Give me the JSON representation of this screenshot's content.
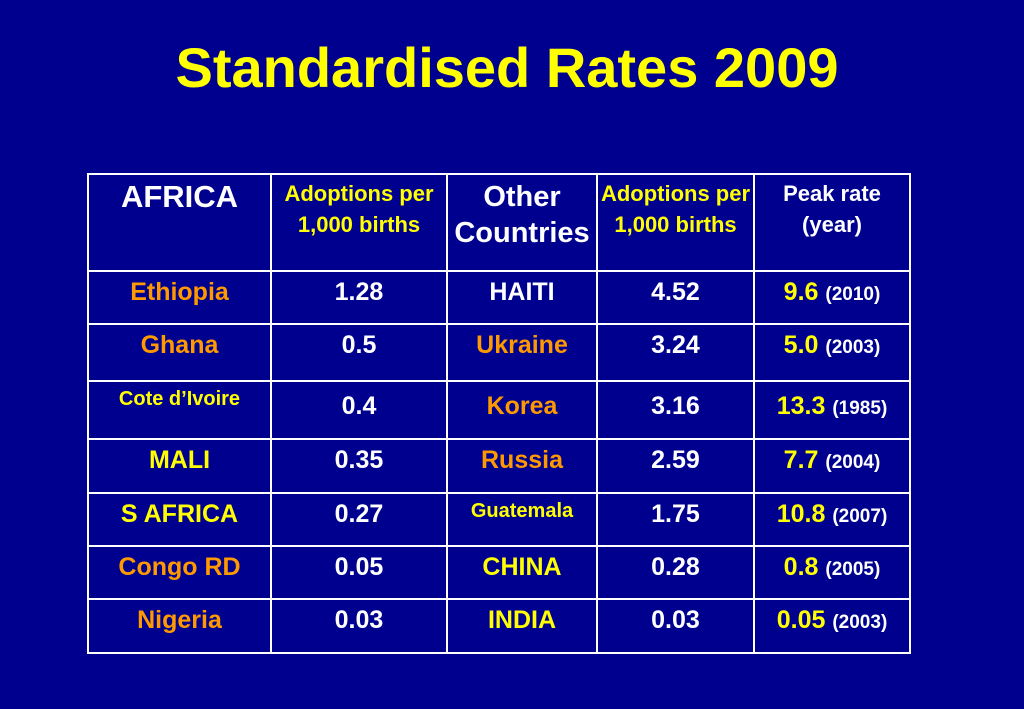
{
  "title": "Standardised Rates 2009",
  "headers": {
    "africa": "AFRICA",
    "adoptions_africa": "Adoptions per 1,000 births",
    "other_countries": "Other Countries",
    "adoptions_other": "Adoptions per 1,000 births",
    "peak_rate": "Peak rate (year)"
  },
  "rows": [
    {
      "africa": "Ethiopia",
      "africa_rate": "1.28",
      "other": "HAITI",
      "other_rate": "4.52",
      "peak": "9.6",
      "peak_year": "(2010)"
    },
    {
      "africa": "Ghana",
      "africa_rate": "0.5",
      "other": "Ukraine",
      "other_rate": "3.24",
      "peak": "5.0",
      "peak_year": "(2003)"
    },
    {
      "africa": "Cote d’Ivoire",
      "africa_rate": "0.4",
      "other": "Korea",
      "other_rate": "3.16",
      "peak": "13.3",
      "peak_year": "(1985)"
    },
    {
      "africa": "MALI",
      "africa_rate": "0.35",
      "other": "Russia",
      "other_rate": "2.59",
      "peak": "7.7",
      "peak_year": "(2004)"
    },
    {
      "africa": "S AFRICA",
      "africa_rate": "0.27",
      "other": "Guatemala",
      "other_rate": "1.75",
      "peak": "10.8",
      "peak_year": "(2007)"
    },
    {
      "africa": "Congo RD",
      "africa_rate": "0.05",
      "other": "CHINA",
      "other_rate": "0.28",
      "peak": "0.8",
      "peak_year": "(2005)"
    },
    {
      "africa": "Nigeria",
      "africa_rate": "0.03",
      "other": "INDIA",
      "other_rate": "0.03",
      "peak": "0.05",
      "peak_year": "(2003)"
    }
  ],
  "colors": {
    "background": "#00008f",
    "title": "#ffff00",
    "highlight": "#ff9900",
    "text": "#ffffff"
  }
}
